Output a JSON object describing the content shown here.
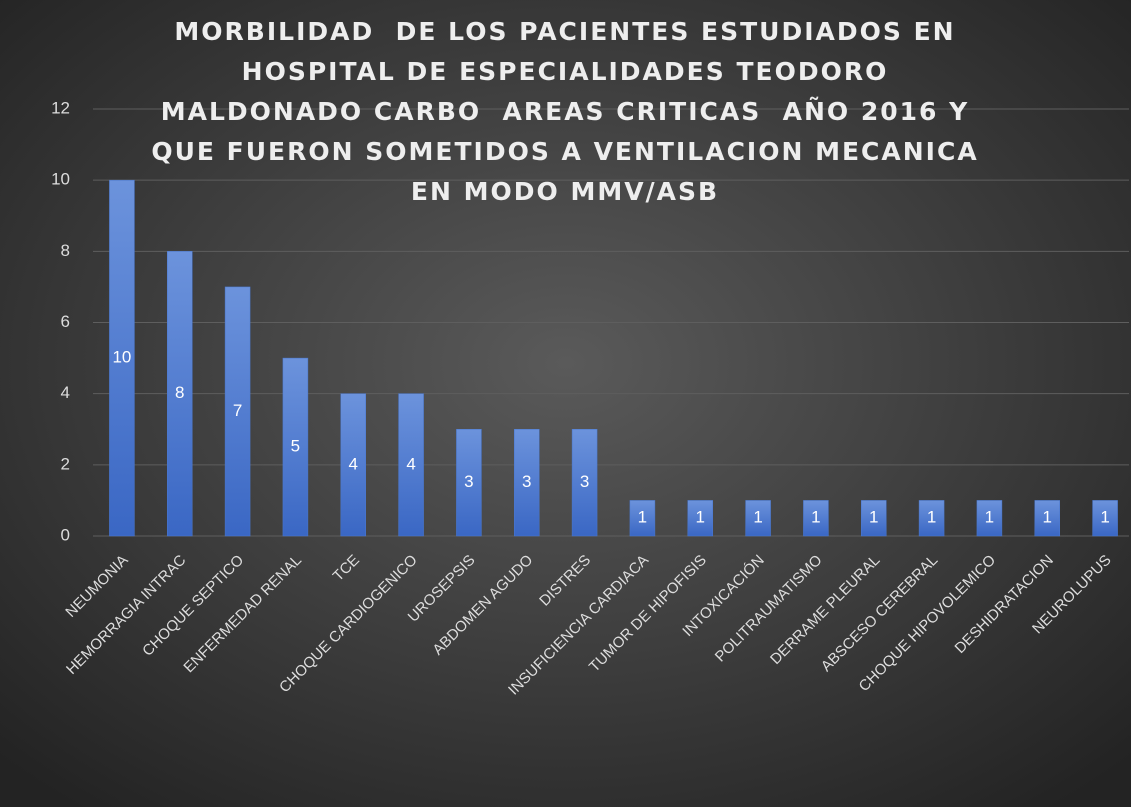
{
  "chart_data": {
    "type": "bar",
    "title": "MORBILIDAD  DE LOS PACIENTES ESTUDIADOS EN HOSPITAL DE ESPECIALIDADES TEODORO MALDONADO CARBO  AREAS CRITICAS  AÑO 2016 Y QUE FUERON SOMETIDOS A VENTILACION MECANICA EN MODO MMV/ASB",
    "categories": [
      "NEUMONIA",
      "HEMORRAGIA INTRAC",
      "CHOQUE SEPTICO",
      "ENFERMEDAD RENAL",
      "TCE",
      "CHOQUE CARDIOGENICO",
      "UROSEPSIS",
      "ABDOMEN AGUDO",
      "DISTRES",
      "INSUFICIENCIA CARDIACA",
      "TUMOR DE HIPOFISIS",
      "INTOXICACIÓN",
      "POLITRAUMATISMO",
      "DERRAME PLEURAL",
      "ABSCESO CEREBRAL",
      "CHOQUE HIPOVOLEMICO",
      "DESHIDRATACION",
      "NEUROLUPUS"
    ],
    "values": [
      10,
      8,
      7,
      5,
      4,
      4,
      3,
      3,
      3,
      1,
      1,
      1,
      1,
      1,
      1,
      1,
      1,
      1
    ],
    "color": "#4a78d0",
    "ylim": [
      0,
      12
    ],
    "yticks": [
      0,
      2,
      4,
      6,
      8,
      10,
      12
    ],
    "grid": true,
    "data_labels": true
  }
}
